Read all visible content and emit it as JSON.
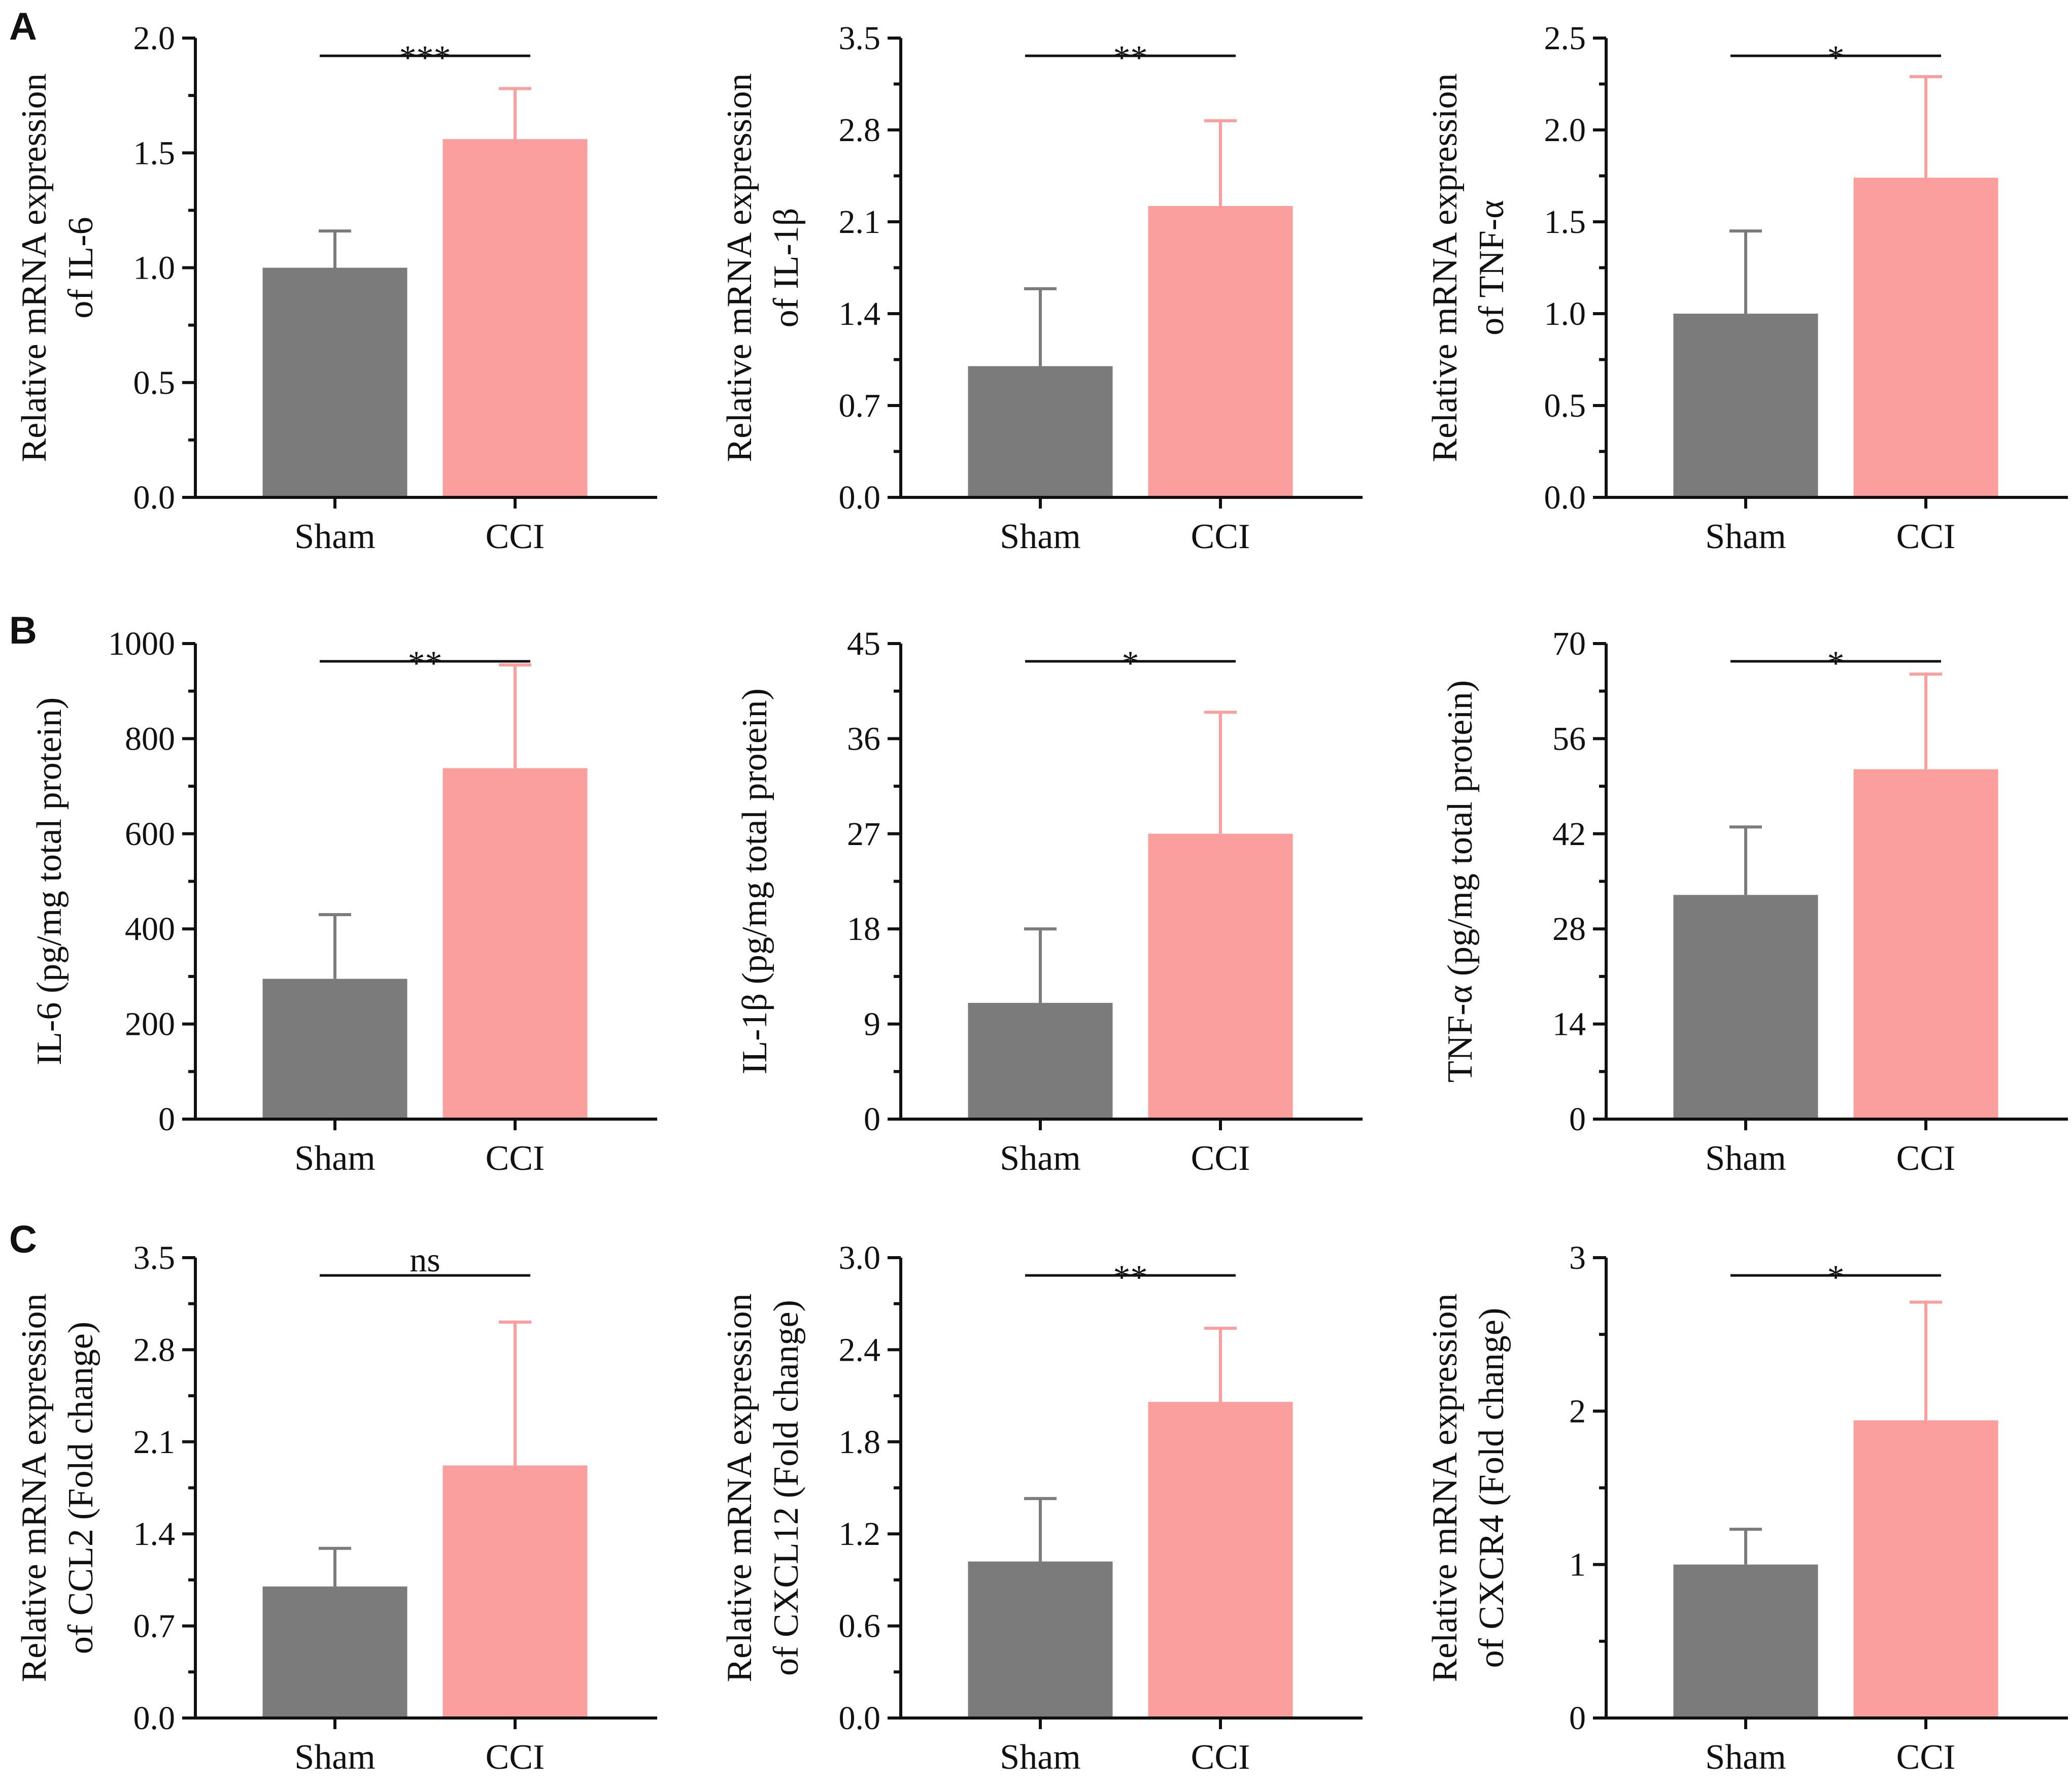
{
  "colors": {
    "sham": "#7b7b7b",
    "cci": "#fa9e9e",
    "axis": "#111111"
  },
  "panel_letters": [
    "A",
    "B",
    "C"
  ],
  "chart_data": [
    {
      "type": "bar",
      "panel": "A",
      "categories": [
        "Sham",
        "CCI"
      ],
      "values": [
        1.0,
        1.56
      ],
      "errors": [
        0.16,
        0.22
      ],
      "ylabel": [
        "Relative mRNA expression",
        "of IL-6"
      ],
      "ylim": [
        0,
        2.0
      ],
      "yticks": [
        "0.0",
        "0.5",
        "1.0",
        "1.5",
        "2.0"
      ],
      "significance": "***"
    },
    {
      "type": "bar",
      "panel": "A",
      "categories": [
        "Sham",
        "CCI"
      ],
      "values": [
        1.0,
        2.22
      ],
      "errors": [
        0.59,
        0.65
      ],
      "ylabel": [
        "Relative mRNA expression",
        "of IL-1β"
      ],
      "ylim": [
        0,
        3.5
      ],
      "yticks": [
        "0.0",
        "0.7",
        "1.4",
        "2.1",
        "2.8",
        "3.5"
      ],
      "significance": "**"
    },
    {
      "type": "bar",
      "panel": "A",
      "categories": [
        "Sham",
        "CCI"
      ],
      "values": [
        1.0,
        1.74
      ],
      "errors": [
        0.45,
        0.55
      ],
      "ylabel": [
        "Relative mRNA expression",
        "of TNF-α"
      ],
      "ylim": [
        0,
        2.5
      ],
      "yticks": [
        "0.0",
        "0.5",
        "1.0",
        "1.5",
        "2.0",
        "2.5"
      ],
      "significance": "*"
    },
    {
      "type": "bar",
      "panel": "B",
      "categories": [
        "Sham",
        "CCI"
      ],
      "values": [
        295,
        738
      ],
      "errors": [
        135,
        217
      ],
      "ylabel": [
        "IL-6 (pg/mg total protein)"
      ],
      "ylim": [
        0,
        1000
      ],
      "yticks": [
        "0",
        "200",
        "400",
        "600",
        "800",
        "1000"
      ],
      "significance": "**"
    },
    {
      "type": "bar",
      "panel": "B",
      "categories": [
        "Sham",
        "CCI"
      ],
      "values": [
        11,
        27
      ],
      "errors": [
        7,
        11.5
      ],
      "ylabel": [
        "IL-1β (pg/mg total protein)"
      ],
      "ylim": [
        0,
        45
      ],
      "yticks": [
        "0",
        "9",
        "18",
        "27",
        "36",
        "45"
      ],
      "significance": "*"
    },
    {
      "type": "bar",
      "panel": "B",
      "categories": [
        "Sham",
        "CCI"
      ],
      "values": [
        33,
        51.5
      ],
      "errors": [
        10,
        14
      ],
      "ylabel": [
        "TNF-α (pg/mg total protein)"
      ],
      "ylim": [
        0,
        70
      ],
      "yticks": [
        "0",
        "14",
        "28",
        "42",
        "56",
        "70"
      ],
      "significance": "*"
    },
    {
      "type": "bar",
      "panel": "C",
      "categories": [
        "Sham",
        "CCI"
      ],
      "values": [
        1.0,
        1.92
      ],
      "errors": [
        0.29,
        1.09
      ],
      "ylabel": [
        "Relative mRNA expression",
        "of CCL2 (Fold change)"
      ],
      "ylim": [
        0,
        3.5
      ],
      "yticks": [
        "0.0",
        "0.7",
        "1.4",
        "2.1",
        "2.8",
        "3.5"
      ],
      "significance": "ns"
    },
    {
      "type": "bar",
      "panel": "C",
      "categories": [
        "Sham",
        "CCI"
      ],
      "values": [
        1.02,
        2.06
      ],
      "errors": [
        0.41,
        0.48
      ],
      "ylabel": [
        "Relative mRNA expression",
        "of CXCL12 (Fold change)"
      ],
      "ylim": [
        0,
        3.0
      ],
      "yticks": [
        "0.0",
        "0.6",
        "1.2",
        "1.8",
        "2.4",
        "3.0"
      ],
      "significance": "**"
    },
    {
      "type": "bar",
      "panel": "C",
      "categories": [
        "Sham",
        "CCI"
      ],
      "values": [
        1.0,
        1.94
      ],
      "errors": [
        0.23,
        0.77
      ],
      "ylabel": [
        "Relative mRNA expression",
        "of CXCR4 (Fold change)"
      ],
      "ylim": [
        0,
        3
      ],
      "yticks": [
        "0",
        "1",
        "2",
        "3"
      ],
      "significance": "*"
    }
  ]
}
